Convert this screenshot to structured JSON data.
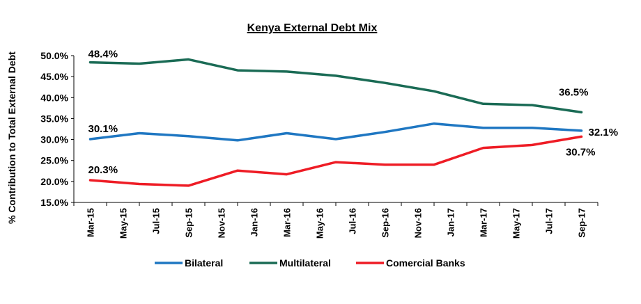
{
  "chart_data": {
    "type": "line",
    "title": "Kenya External Debt Mix",
    "xlabel": "",
    "ylabel": "% Contribution  to Total External Debt",
    "ylim": [
      15,
      50
    ],
    "yticks": [
      "15.0%",
      "20.0%",
      "25.0%",
      "30.0%",
      "35.0%",
      "40.0%",
      "45.0%",
      "50.0%"
    ],
    "xticks": [
      "Mar-15",
      "May-15",
      "Jul-15",
      "Sep-15",
      "Nov-15",
      "Jan-16",
      "Mar-16",
      "May-16",
      "Jul-16",
      "Sep-16",
      "Nov-16",
      "Jan-17",
      "Mar-17",
      "May-17",
      "Jul-17",
      "Sep-17"
    ],
    "x": [
      "Mar-15",
      "Jun-15",
      "Sep-15",
      "Dec-15",
      "Mar-16",
      "Jun-16",
      "Sep-16",
      "Dec-16",
      "Mar-17",
      "Jun-17",
      "Sep-17"
    ],
    "series": [
      {
        "name": "Bilateral",
        "color": "#1f77c2",
        "values": [
          30.1,
          31.5,
          30.8,
          29.8,
          31.5,
          30.1,
          31.8,
          33.8,
          32.8,
          32.8,
          32.1
        ]
      },
      {
        "name": "Multilateral",
        "color": "#1a6b55",
        "values": [
          48.4,
          48.1,
          49.1,
          46.5,
          46.2,
          45.2,
          43.5,
          41.5,
          38.5,
          38.2,
          36.5
        ]
      },
      {
        "name": "Comercial Banks",
        "color": "#ee1c25",
        "values": [
          20.3,
          19.4,
          19.0,
          22.6,
          21.7,
          24.6,
          24.0,
          24.0,
          28.0,
          28.7,
          30.7
        ]
      }
    ],
    "data_labels": [
      "48.4%",
      "30.1%",
      "20.3%",
      "36.5%",
      "32.1%",
      "30.7%"
    ],
    "grid": false,
    "legend_position": "bottom"
  }
}
